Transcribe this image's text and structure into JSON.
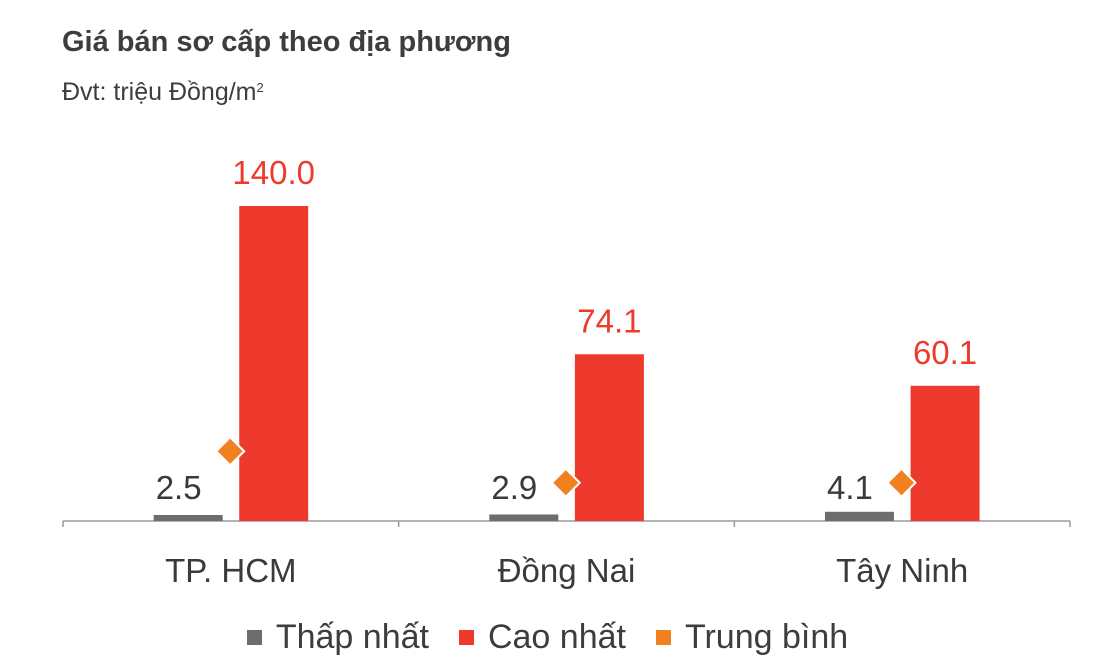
{
  "chart_data": {
    "type": "bar",
    "title": "Giá bán sơ cấp theo địa phương",
    "subtitle": "Đvt: triệu Đồng/m",
    "subtitle_sup": "2",
    "categories": [
      "TP. HCM",
      "Đồng Nai",
      "Tây Ninh"
    ],
    "series": [
      {
        "name": "Thấp nhất",
        "kind": "bar",
        "color": "#6d6d6d",
        "values": [
          2.5,
          2.9,
          4.1
        ],
        "labels": [
          "2.5",
          "2.9",
          "4.1"
        ]
      },
      {
        "name": "Cao nhất",
        "kind": "bar",
        "color": "#ee3a2d",
        "values": [
          140.0,
          74.1,
          60.1
        ],
        "labels": [
          "140.0",
          "74.1",
          "60.1"
        ]
      },
      {
        "name": "Trung bình",
        "kind": "marker",
        "color": "#f08020",
        "values": [
          31,
          17,
          17
        ]
      }
    ],
    "ylim": [
      0,
      150
    ],
    "grid": false,
    "legend_position": "bottom"
  }
}
